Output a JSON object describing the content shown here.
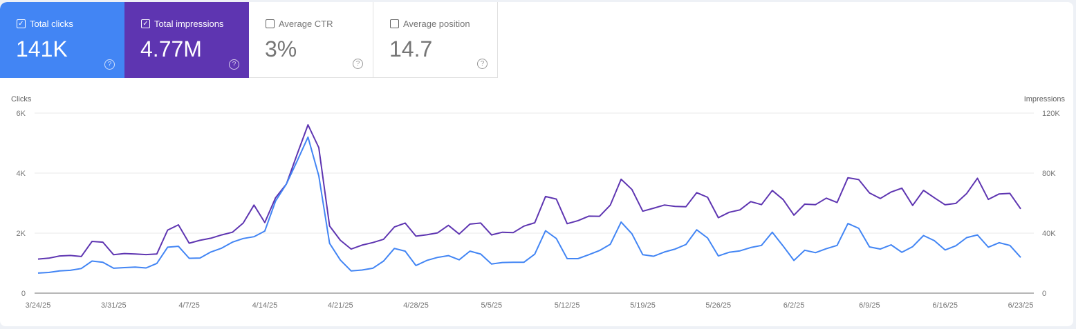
{
  "metrics": [
    {
      "label": "Total clicks",
      "value": "141K",
      "checked": true,
      "color": "#4285f4"
    },
    {
      "label": "Total impressions",
      "value": "4.77M",
      "checked": true,
      "color": "#5e35b1"
    },
    {
      "label": "Average CTR",
      "value": "3%",
      "checked": false
    },
    {
      "label": "Average position",
      "value": "14.7",
      "checked": false
    }
  ],
  "chart_data": {
    "type": "line",
    "left_axis": {
      "label": "Clicks",
      "ticks": [
        "0",
        "2K",
        "4K",
        "6K"
      ],
      "range": [
        0,
        6000
      ]
    },
    "right_axis": {
      "label": "Impressions",
      "ticks": [
        "0",
        "40K",
        "80K",
        "120K"
      ],
      "range": [
        0,
        120000
      ]
    },
    "x_ticks": [
      "3/24/25",
      "3/31/25",
      "4/7/25",
      "4/14/25",
      "4/21/25",
      "4/28/25",
      "5/5/25",
      "5/12/25",
      "5/19/25",
      "5/26/25",
      "6/2/25",
      "6/9/25",
      "6/16/25",
      "6/23/25"
    ],
    "x": [
      "3/24/25",
      "3/25/25",
      "3/26/25",
      "3/27/25",
      "3/28/25",
      "3/29/25",
      "3/30/25",
      "3/31/25",
      "4/1/25",
      "4/2/25",
      "4/3/25",
      "4/4/25",
      "4/5/25",
      "4/6/25",
      "4/7/25",
      "4/8/25",
      "4/9/25",
      "4/10/25",
      "4/11/25",
      "4/12/25",
      "4/13/25",
      "4/14/25",
      "4/15/25",
      "4/16/25",
      "4/17/25",
      "4/18/25",
      "4/19/25",
      "4/20/25",
      "4/21/25",
      "4/22/25",
      "4/23/25",
      "4/24/25",
      "4/25/25",
      "4/26/25",
      "4/27/25",
      "4/28/25",
      "4/29/25",
      "4/30/25",
      "5/1/25",
      "5/2/25",
      "5/3/25",
      "5/4/25",
      "5/5/25",
      "5/6/25",
      "5/7/25",
      "5/8/25",
      "5/9/25",
      "5/10/25",
      "5/11/25",
      "5/12/25",
      "5/13/25",
      "5/14/25",
      "5/15/25",
      "5/16/25",
      "5/17/25",
      "5/18/25",
      "5/19/25",
      "5/20/25",
      "5/21/25",
      "5/22/25",
      "5/23/25",
      "5/24/25",
      "5/25/25",
      "5/26/25",
      "5/27/25",
      "5/28/25",
      "5/29/25",
      "5/30/25",
      "5/31/25",
      "6/1/25",
      "6/2/25",
      "6/3/25",
      "6/4/25",
      "6/5/25",
      "6/6/25",
      "6/7/25",
      "6/8/25",
      "6/9/25",
      "6/10/25",
      "6/11/25",
      "6/12/25",
      "6/13/25",
      "6/14/25",
      "6/15/25",
      "6/16/25",
      "6/17/25",
      "6/18/25",
      "6/19/25",
      "6/20/25",
      "6/21/25",
      "6/22/25",
      "6/23/25"
    ],
    "series": [
      {
        "name": "Clicks",
        "axis": "left",
        "color": "#4285f4",
        "values": [
          670,
          690,
          740,
          760,
          820,
          1070,
          1030,
          830,
          850,
          870,
          840,
          990,
          1530,
          1560,
          1160,
          1170,
          1370,
          1500,
          1700,
          1820,
          1880,
          2070,
          3070,
          3640,
          4410,
          5200,
          3910,
          1660,
          1100,
          740,
          770,
          830,
          1070,
          1490,
          1400,
          920,
          1090,
          1190,
          1250,
          1110,
          1400,
          1300,
          970,
          1020,
          1030,
          1030,
          1300,
          2080,
          1820,
          1150,
          1150,
          1280,
          1420,
          1630,
          2370,
          1980,
          1280,
          1230,
          1370,
          1470,
          1620,
          2110,
          1840,
          1240,
          1360,
          1410,
          1520,
          1590,
          2030,
          1570,
          1090,
          1430,
          1350,
          1480,
          1590,
          2320,
          2160,
          1540,
          1470,
          1610,
          1360,
          1550,
          1920,
          1750,
          1440,
          1580,
          1850,
          1940,
          1530,
          1680,
          1590,
          1190
        ]
      },
      {
        "name": "Impressions",
        "axis": "right",
        "color": "#5e35b1",
        "values": [
          22700,
          23300,
          24800,
          25100,
          24400,
          34500,
          34000,
          25600,
          26400,
          26100,
          25700,
          26100,
          42000,
          45500,
          33300,
          35200,
          36600,
          38800,
          40600,
          46700,
          58700,
          47100,
          63600,
          72800,
          92700,
          112200,
          97000,
          44800,
          35200,
          29400,
          32000,
          33700,
          35900,
          44100,
          46700,
          38000,
          38900,
          40200,
          45200,
          39400,
          46000,
          46700,
          38800,
          40600,
          40300,
          44700,
          46900,
          64400,
          62700,
          46300,
          48300,
          51300,
          51200,
          58700,
          75900,
          69100,
          54600,
          56600,
          58700,
          57800,
          57600,
          67000,
          63900,
          50300,
          53900,
          55500,
          61000,
          59000,
          68400,
          62400,
          52000,
          59300,
          59000,
          63300,
          60400,
          76900,
          75700,
          66800,
          63100,
          67400,
          70000,
          58500,
          68500,
          63600,
          58900,
          59800,
          66400,
          76600,
          62500,
          66100,
          66500,
          56200
        ]
      }
    ],
    "grid": true
  }
}
